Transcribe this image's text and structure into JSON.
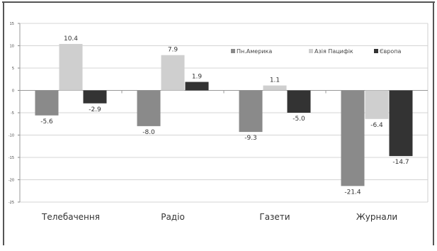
{
  "chart_data": {
    "type": "bar",
    "categories": [
      "Телебачення",
      "Радіо",
      "Газети",
      "Журнали"
    ],
    "series": [
      {
        "name": "Пн.Америка",
        "values": [
          -5.6,
          -8.0,
          -9.3,
          -21.4
        ],
        "labels": [
          "-5.6",
          "-8.0",
          "-9.3",
          "-21.4"
        ],
        "color": "#8a8a8a"
      },
      {
        "name": "Азія Пацифік",
        "values": [
          10.4,
          7.9,
          1.1,
          -6.4
        ],
        "labels": [
          "10.4",
          "7.9",
          "1.1",
          "-6.4"
        ],
        "color": "#cfcfcf"
      },
      {
        "name": "Європа",
        "values": [
          -2.9,
          1.9,
          -5.0,
          -14.7
        ],
        "labels": [
          "-2.9",
          "1.9",
          "-5.0",
          "-14.7"
        ],
        "color": "#333333"
      }
    ],
    "y_ticks": [
      15,
      10,
      5,
      0,
      -5,
      -10,
      -15,
      -20,
      -25
    ],
    "y_tick_labels": [
      "15",
      "10",
      "5",
      "0",
      "-5",
      "-10",
      "-15",
      "-20",
      "-25"
    ],
    "ylim": [
      -25,
      15
    ],
    "grid": true,
    "legend_placement": "top-right"
  }
}
